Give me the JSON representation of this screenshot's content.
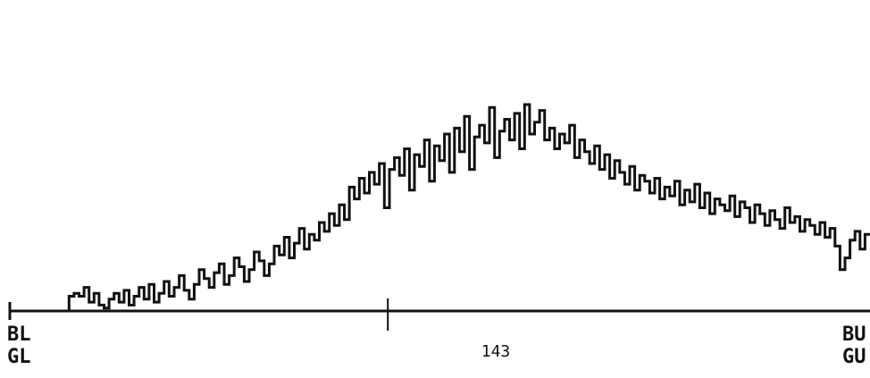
{
  "chart_data": {
    "type": "line",
    "style": "step",
    "color": "#111111",
    "series": [
      {
        "x_start": 0,
        "x_end": 175,
        "values": [
          0,
          0,
          0,
          0,
          0,
          0,
          0,
          0,
          0,
          0,
          0,
          0,
          5,
          6,
          5,
          8,
          3,
          6,
          2,
          1,
          4,
          6,
          3,
          7,
          2,
          5,
          8,
          4,
          9,
          3,
          6,
          10,
          5,
          8,
          12,
          7,
          4,
          9,
          14,
          11,
          8,
          13,
          16,
          9,
          12,
          18,
          15,
          10,
          14,
          20,
          17,
          12,
          16,
          22,
          19,
          25,
          18,
          23,
          28,
          21,
          26,
          24,
          30,
          27,
          33,
          29,
          36,
          31,
          42,
          38,
          45,
          40,
          47,
          43,
          50,
          35,
          48,
          52,
          46,
          55,
          41,
          53,
          49,
          58,
          44,
          56,
          51,
          60,
          47,
          62,
          54,
          66,
          48,
          59,
          63,
          57,
          69,
          52,
          61,
          65,
          58,
          67,
          55,
          70,
          60,
          64,
          68,
          58,
          62,
          55,
          60,
          57,
          63,
          52,
          58,
          54,
          50,
          56,
          48,
          53,
          45,
          51,
          47,
          43,
          49,
          41,
          46,
          44,
          40,
          45,
          38,
          42,
          39,
          44,
          36,
          41,
          37,
          43,
          35,
          40,
          33,
          38,
          36,
          34,
          39,
          32,
          37,
          35,
          30,
          36,
          33,
          29,
          34,
          31,
          28,
          35,
          30,
          32,
          27,
          31,
          29,
          26,
          30,
          25,
          28,
          22,
          14,
          18,
          24,
          27,
          21,
          26
        ]
      }
    ],
    "x_labels": {
      "left_top": "BL",
      "left_bottom": "GL",
      "center": "143",
      "right_top": "BU",
      "right_bottom": "GU"
    },
    "center_tick_x": 77,
    "xlim": [
      0,
      175
    ],
    "ylim": [
      0,
      100
    ],
    "grid": false,
    "legend": "none"
  }
}
